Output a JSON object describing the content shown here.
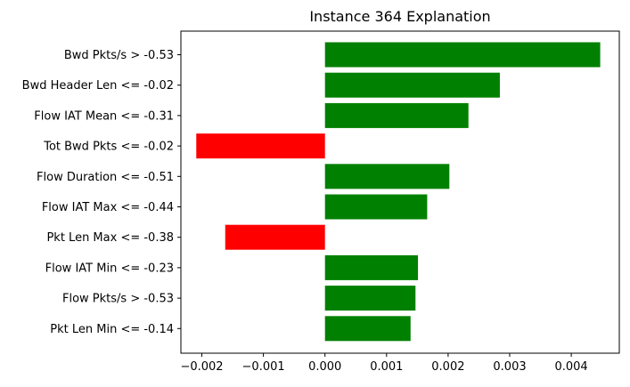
{
  "chart_data": {
    "type": "bar",
    "orientation": "horizontal",
    "title": "Instance 364 Explanation",
    "xlabel": "",
    "ylabel": "",
    "xlim": [
      -0.00234,
      0.00478
    ],
    "xticks": [
      -0.002,
      -0.001,
      0.0,
      0.001,
      0.002,
      0.003,
      0.004
    ],
    "xtick_labels": [
      "−0.002",
      "−0.001",
      "0.000",
      "0.001",
      "0.002",
      "0.003",
      "0.004"
    ],
    "grid": false,
    "colors": {
      "positive": "#008000",
      "negative": "#ff0000"
    },
    "categories": [
      "Bwd Pkts/s > -0.53",
      "Bwd Header Len <= -0.02",
      "Flow IAT Mean <= -0.31",
      "Tot Bwd Pkts <= -0.02",
      "Flow Duration <= -0.51",
      "Flow IAT Max <= -0.44",
      "Pkt Len Max <= -0.38",
      "Flow IAT Min <= -0.23",
      "Flow Pkts/s > -0.53",
      "Pkt Len Min <= -0.14"
    ],
    "values": [
      0.00447,
      0.00284,
      0.00233,
      -0.00209,
      0.00202,
      0.00166,
      -0.00162,
      0.00151,
      0.00147,
      0.00139
    ]
  }
}
